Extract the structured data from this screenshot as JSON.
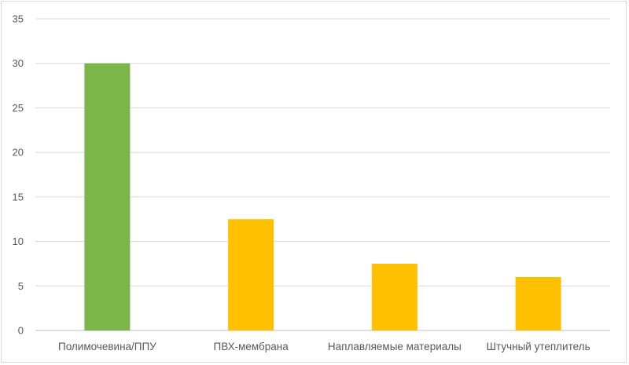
{
  "chart_data": {
    "type": "bar",
    "title": "",
    "xlabel": "",
    "ylabel": "",
    "categories": [
      "Полимочевина/ППУ",
      "ПВХ-мембрана",
      "Наплавляемые материалы",
      "Штучный утеплитель"
    ],
    "values": [
      30,
      12.5,
      7.5,
      6
    ],
    "bar_colors": [
      "#7ab648",
      "#ffc000",
      "#ffc000",
      "#ffc000"
    ],
    "ylim": [
      0,
      35
    ],
    "yticks": [
      0,
      5,
      10,
      15,
      20,
      25,
      30,
      35
    ],
    "grid": true,
    "legend": "none"
  }
}
